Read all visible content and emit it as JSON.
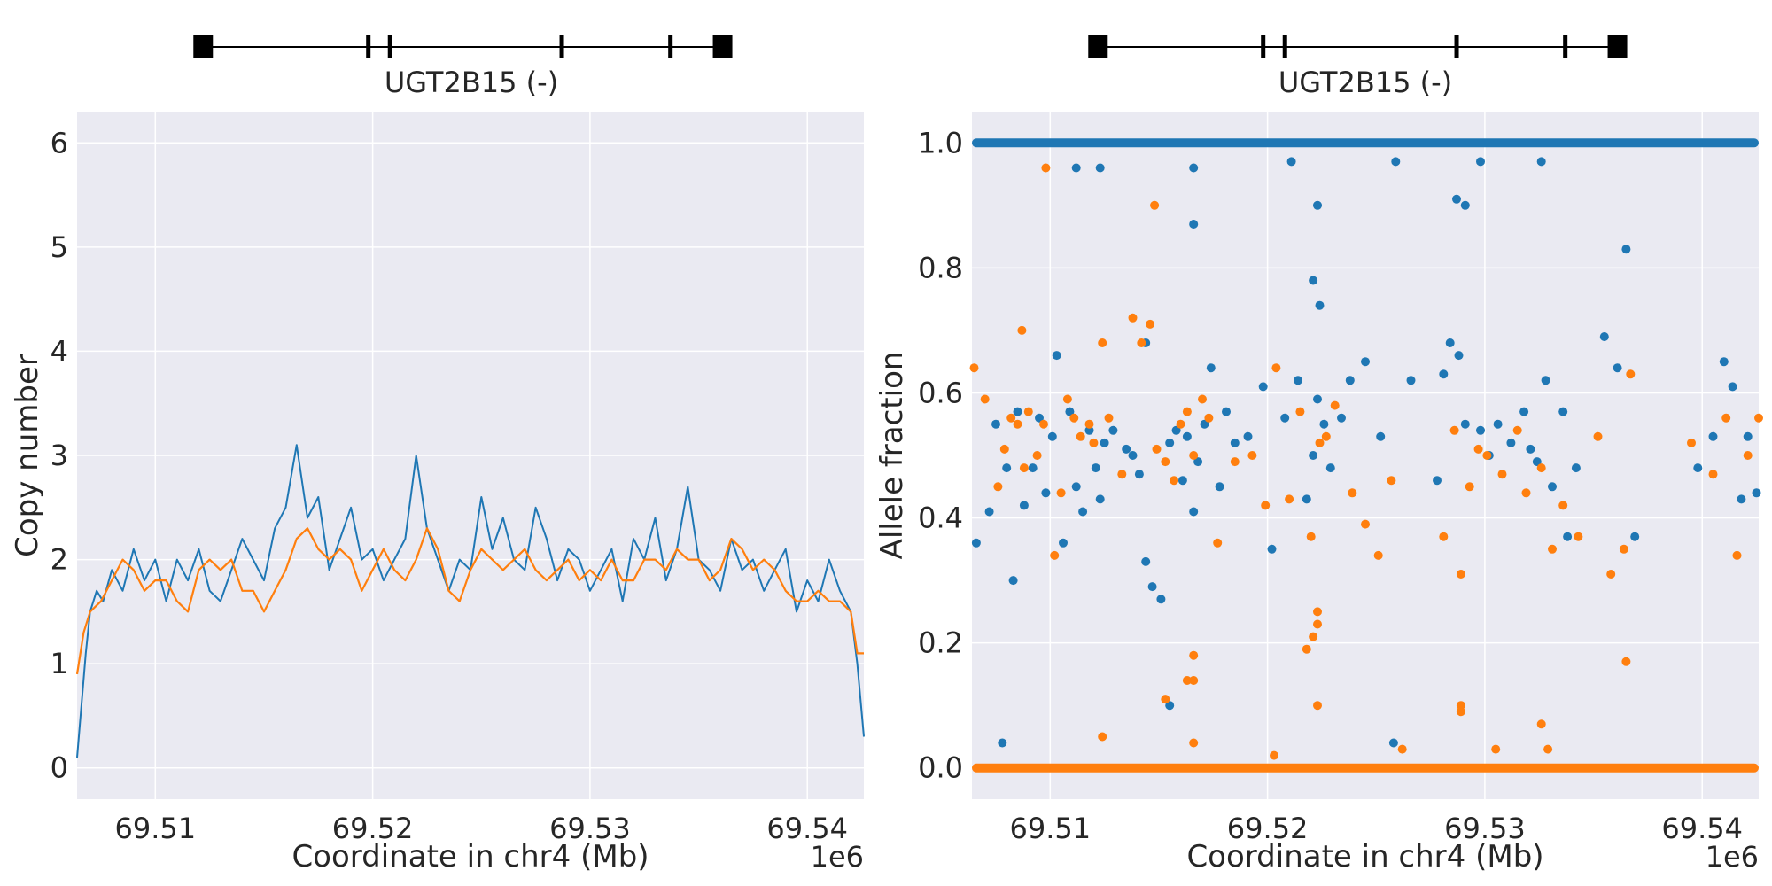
{
  "figure": {
    "colors": {
      "background": "#eaeaf2",
      "grid": "#ffffff",
      "text": "#262626",
      "series1": "#1f77b4",
      "series2": "#ff7f0e"
    }
  },
  "chart_data": [
    {
      "type": "line",
      "gene_track": {
        "label": "UGT2B15 (-)",
        "exons_mb": [
          69.5122,
          69.5198,
          69.5208,
          69.5287,
          69.5337,
          69.5361
        ]
      },
      "xlabel": "Coordinate in chr4 (Mb)",
      "ylabel": "Copy number",
      "x_offset_label": "1e6",
      "xlim_mb": [
        69.5064,
        69.5426
      ],
      "ylim": [
        -0.3,
        6.3
      ],
      "xticks": [
        "69.51",
        "69.52",
        "69.53",
        "69.54"
      ],
      "xtick_values_mb": [
        69.51,
        69.52,
        69.53,
        69.54
      ],
      "yticks": [
        "0",
        "1",
        "2",
        "3",
        "4",
        "5",
        "6"
      ],
      "ytick_values": [
        0,
        1,
        2,
        3,
        4,
        5,
        6
      ],
      "grid": true,
      "series": [
        {
          "color": "#1f77b4",
          "description": "per-base copy number coverage",
          "x_mb": [
            69.5064,
            69.5066,
            69.5068,
            69.507,
            69.5073,
            69.5076,
            69.508,
            69.5085,
            69.509,
            69.5095,
            69.51,
            69.5105,
            69.511,
            69.5115,
            69.512,
            69.5125,
            69.513,
            69.5135,
            69.514,
            69.5145,
            69.515,
            69.5155,
            69.516,
            69.5165,
            69.517,
            69.5175,
            69.518,
            69.5185,
            69.519,
            69.5195,
            69.52,
            69.5205,
            69.521,
            69.5215,
            69.522,
            69.5225,
            69.523,
            69.5235,
            69.524,
            69.5245,
            69.525,
            69.5255,
            69.526,
            69.5265,
            69.527,
            69.5275,
            69.528,
            69.5285,
            69.529,
            69.5295,
            69.53,
            69.5305,
            69.531,
            69.5315,
            69.532,
            69.5325,
            69.533,
            69.5335,
            69.534,
            69.5345,
            69.535,
            69.5355,
            69.536,
            69.5365,
            69.537,
            69.5375,
            69.538,
            69.5385,
            69.539,
            69.5395,
            69.54,
            69.5405,
            69.541,
            69.5415,
            69.542,
            69.5423,
            69.5426
          ],
          "y": [
            0.1,
            0.6,
            1.1,
            1.5,
            1.7,
            1.6,
            1.9,
            1.7,
            2.1,
            1.8,
            2.0,
            1.6,
            2.0,
            1.8,
            2.1,
            1.7,
            1.6,
            1.9,
            2.2,
            2.0,
            1.8,
            2.3,
            2.5,
            3.1,
            2.4,
            2.6,
            1.9,
            2.2,
            2.5,
            2.0,
            2.1,
            1.8,
            2.0,
            2.2,
            3.0,
            2.3,
            2.0,
            1.7,
            2.0,
            1.9,
            2.6,
            2.1,
            2.4,
            2.0,
            1.9,
            2.5,
            2.2,
            1.8,
            2.1,
            2.0,
            1.7,
            1.9,
            2.1,
            1.6,
            2.2,
            2.0,
            2.4,
            1.8,
            2.1,
            2.7,
            2.0,
            1.9,
            1.7,
            2.2,
            1.9,
            2.0,
            1.7,
            1.9,
            2.1,
            1.5,
            1.8,
            1.6,
            2.0,
            1.7,
            1.5,
            1.0,
            0.3
          ]
        },
        {
          "color": "#ff7f0e",
          "description": "smoothed copy number",
          "x_mb": [
            69.5064,
            69.5067,
            69.507,
            69.5075,
            69.508,
            69.5085,
            69.509,
            69.5095,
            69.51,
            69.5105,
            69.511,
            69.5115,
            69.512,
            69.5125,
            69.513,
            69.5135,
            69.514,
            69.5145,
            69.515,
            69.5155,
            69.516,
            69.5165,
            69.517,
            69.5175,
            69.518,
            69.5185,
            69.519,
            69.5195,
            69.52,
            69.5205,
            69.521,
            69.5215,
            69.522,
            69.5225,
            69.523,
            69.5235,
            69.524,
            69.5245,
            69.525,
            69.5255,
            69.526,
            69.5265,
            69.527,
            69.5275,
            69.528,
            69.5285,
            69.529,
            69.5295,
            69.53,
            69.5305,
            69.531,
            69.5315,
            69.532,
            69.5325,
            69.533,
            69.5335,
            69.534,
            69.5345,
            69.535,
            69.5355,
            69.536,
            69.5365,
            69.537,
            69.5375,
            69.538,
            69.5385,
            69.539,
            69.5395,
            69.54,
            69.5405,
            69.541,
            69.5415,
            69.542,
            69.5423,
            69.5426
          ],
          "y": [
            0.9,
            1.3,
            1.5,
            1.6,
            1.8,
            2.0,
            1.9,
            1.7,
            1.8,
            1.8,
            1.6,
            1.5,
            1.9,
            2.0,
            1.9,
            2.0,
            1.7,
            1.7,
            1.5,
            1.7,
            1.9,
            2.2,
            2.3,
            2.1,
            2.0,
            2.1,
            2.0,
            1.7,
            1.9,
            2.1,
            1.9,
            1.8,
            2.0,
            2.3,
            2.1,
            1.7,
            1.6,
            1.9,
            2.1,
            2.0,
            1.9,
            2.0,
            2.1,
            1.9,
            1.8,
            1.9,
            2.0,
            1.8,
            1.9,
            1.8,
            2.0,
            1.8,
            1.8,
            2.0,
            2.0,
            1.9,
            2.1,
            2.0,
            2.0,
            1.8,
            1.9,
            2.2,
            2.1,
            1.9,
            2.0,
            1.9,
            1.7,
            1.6,
            1.6,
            1.7,
            1.6,
            1.6,
            1.5,
            1.1,
            1.1
          ]
        }
      ]
    },
    {
      "type": "scatter",
      "gene_track": {
        "label": "UGT2B15 (-)",
        "exons_mb": [
          69.5122,
          69.5198,
          69.5208,
          69.5287,
          69.5337,
          69.5361
        ]
      },
      "xlabel": "Coordinate in chr4 (Mb)",
      "ylabel": "Allele fraction",
      "x_offset_label": "1e6",
      "xlim_mb": [
        69.5064,
        69.5426
      ],
      "ylim": [
        -0.05,
        1.05
      ],
      "xticks": [
        "69.51",
        "69.52",
        "69.53",
        "69.54"
      ],
      "xtick_values_mb": [
        69.51,
        69.52,
        69.53,
        69.54
      ],
      "yticks": [
        "0.0",
        "0.2",
        "0.4",
        "0.6",
        "0.8",
        "1.0"
      ],
      "ytick_values": [
        0.0,
        0.2,
        0.4,
        0.6,
        0.8,
        1.0
      ],
      "grid": true,
      "series": [
        {
          "color": "#1f77b4",
          "x_mb": [
            69.5066,
            69.5072,
            69.5075,
            69.5078,
            69.508,
            69.5083,
            69.5085,
            69.5088,
            69.5092,
            69.5095,
            69.5098,
            69.5101,
            69.5103,
            69.5106,
            69.5109,
            69.5112,
            69.5115,
            69.5118,
            69.5121,
            69.5123,
            69.5125,
            69.5129,
            69.5135,
            69.5138,
            69.5141,
            69.5144,
            69.5147,
            69.5151,
            69.5155,
            69.5158,
            69.5161,
            69.5163,
            69.5166,
            69.5168,
            69.5171,
            69.5174,
            69.5178,
            69.5181,
            69.5185,
            69.5191,
            69.5198,
            69.5202,
            69.5208,
            69.5214,
            69.5218,
            69.5221,
            69.5223,
            69.5226,
            69.5229,
            69.5234,
            69.5238,
            69.5245,
            69.5252,
            69.5258,
            69.5266,
            69.5278,
            69.5284,
            69.5288,
            69.5291,
            69.5298,
            69.5302,
            69.5306,
            69.5312,
            69.5318,
            69.5321,
            69.5324,
            69.5328,
            69.5331,
            69.5336,
            69.5338,
            69.5342,
            69.5355,
            69.5361,
            69.5365,
            69.5369,
            69.5398,
            69.5405,
            69.541,
            69.5414,
            69.5418,
            69.5421,
            69.5425,
            69.5123,
            69.5166,
            69.5223,
            69.5326,
            69.5144,
            69.5155,
            69.5166,
            69.5221,
            69.5224,
            69.5287,
            69.5291,
            69.5298,
            69.5281,
            69.5211,
            69.5259,
            69.5112
          ],
          "y": [
            0.36,
            0.41,
            0.55,
            0.04,
            0.48,
            0.3,
            0.57,
            0.42,
            0.48,
            0.56,
            0.44,
            0.53,
            0.66,
            0.36,
            0.57,
            0.45,
            0.41,
            0.54,
            0.48,
            0.43,
            0.52,
            0.54,
            0.51,
            0.5,
            0.47,
            0.33,
            0.29,
            0.27,
            0.52,
            0.54,
            0.46,
            0.53,
            0.41,
            0.49,
            0.55,
            0.64,
            0.45,
            0.57,
            0.52,
            0.53,
            0.61,
            0.35,
            0.56,
            0.62,
            0.43,
            0.5,
            0.59,
            0.55,
            0.48,
            0.56,
            0.62,
            0.65,
            0.53,
            0.04,
            0.62,
            0.46,
            0.68,
            0.66,
            0.55,
            0.54,
            0.5,
            0.55,
            0.52,
            0.57,
            0.51,
            0.49,
            0.62,
            0.45,
            0.57,
            0.37,
            0.48,
            0.69,
            0.64,
            0.83,
            0.37,
            0.48,
            0.53,
            0.65,
            0.61,
            0.43,
            0.53,
            0.44,
            0.96,
            0.96,
            0.9,
            0.97,
            0.68,
            0.1,
            0.87,
            0.78,
            0.74,
            0.91,
            0.9,
            0.97,
            0.63,
            0.97,
            0.97,
            0.96
          ]
        },
        {
          "color": "#ff7f0e",
          "x_mb": [
            69.5065,
            69.507,
            69.5076,
            69.5079,
            69.5082,
            69.5085,
            69.5088,
            69.509,
            69.5094,
            69.5097,
            69.5102,
            69.5105,
            69.5108,
            69.5111,
            69.5114,
            69.5118,
            69.512,
            69.5124,
            69.5127,
            69.5133,
            69.5138,
            69.5142,
            69.5146,
            69.5149,
            69.5153,
            69.5157,
            69.516,
            69.5163,
            69.5166,
            69.517,
            69.5173,
            69.5177,
            69.5185,
            69.5193,
            69.5199,
            69.5204,
            69.521,
            69.5215,
            69.522,
            69.5224,
            69.5227,
            69.5231,
            69.5239,
            69.5245,
            69.5251,
            69.5257,
            69.5281,
            69.5286,
            69.5289,
            69.5293,
            69.5297,
            69.5301,
            69.5308,
            69.5315,
            69.5319,
            69.5326,
            69.5331,
            69.5336,
            69.5343,
            69.5352,
            69.5358,
            69.5364,
            69.5367,
            69.5395,
            69.5405,
            69.5411,
            69.5416,
            69.5421,
            69.5426,
            69.5087,
            69.5148,
            69.5153,
            69.5166,
            69.5163,
            69.5166,
            69.5166,
            69.5223,
            69.5223,
            69.5221,
            69.5218,
            69.5223,
            69.5289,
            69.5289,
            69.5326,
            69.5329,
            69.5124,
            69.5203,
            69.5262,
            69.5365,
            69.5305,
            69.5098
          ],
          "y": [
            0.64,
            0.59,
            0.45,
            0.51,
            0.56,
            0.55,
            0.48,
            0.57,
            0.5,
            0.55,
            0.34,
            0.44,
            0.59,
            0.56,
            0.53,
            0.55,
            0.52,
            0.68,
            0.56,
            0.47,
            0.72,
            0.68,
            0.71,
            0.51,
            0.49,
            0.46,
            0.55,
            0.57,
            0.5,
            0.59,
            0.56,
            0.36,
            0.49,
            0.5,
            0.42,
            0.64,
            0.43,
            0.57,
            0.37,
            0.52,
            0.53,
            0.58,
            0.44,
            0.39,
            0.34,
            0.46,
            0.37,
            0.54,
            0.31,
            0.45,
            0.51,
            0.5,
            0.47,
            0.54,
            0.44,
            0.48,
            0.35,
            0.42,
            0.37,
            0.53,
            0.31,
            0.35,
            0.63,
            0.52,
            0.47,
            0.56,
            0.34,
            0.5,
            0.56,
            0.7,
            0.9,
            0.11,
            0.18,
            0.14,
            0.14,
            0.04,
            0.25,
            0.23,
            0.21,
            0.19,
            0.1,
            0.1,
            0.09,
            0.07,
            0.03,
            0.05,
            0.02,
            0.03,
            0.17,
            0.03,
            0.96
          ]
        }
      ]
    }
  ]
}
